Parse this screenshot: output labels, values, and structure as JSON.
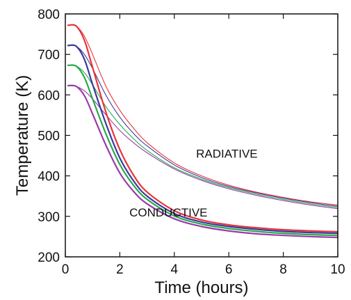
{
  "chart_data": {
    "type": "line",
    "title": "",
    "xlabel": "Time (hours)",
    "ylabel": "Temperature (K)",
    "xlim": [
      0,
      10
    ],
    "ylim": [
      200,
      800
    ],
    "xticks": [
      0,
      2,
      4,
      6,
      8,
      10
    ],
    "yticks": [
      200,
      300,
      400,
      500,
      600,
      700,
      800
    ],
    "xtick_labels": [
      "0",
      "2",
      "4",
      "6",
      "8",
      "10"
    ],
    "ytick_labels": [
      "200",
      "300",
      "400",
      "500",
      "600",
      "700",
      "800"
    ],
    "grid": false,
    "annotations": [
      {
        "text": "RADIATIVE",
        "x": 4.8,
        "y": 445
      },
      {
        "text": "CONDUCTIVE",
        "x": 2.35,
        "y": 300
      }
    ],
    "series": [
      {
        "group": "radiative",
        "color": "#e8333a",
        "x": [
          0.1,
          0.4,
          0.7,
          1.0,
          1.5,
          2.0,
          2.5,
          3.0,
          4.0,
          5.0,
          6.0,
          7.0,
          8.0,
          9.0,
          10.0
        ],
        "y": [
          772,
          770,
          745,
          700,
          620,
          562,
          518,
          482,
          432,
          400,
          377,
          360,
          347,
          336,
          328
        ]
      },
      {
        "group": "radiative",
        "color": "#3a3a9e",
        "x": [
          0.1,
          0.4,
          0.7,
          1.0,
          1.5,
          2.0,
          2.5,
          3.0,
          4.0,
          5.0,
          6.0,
          7.0,
          8.0,
          9.0,
          10.0
        ],
        "y": [
          722,
          720,
          700,
          665,
          598,
          545,
          505,
          474,
          427,
          396,
          374,
          358,
          345,
          334,
          325
        ]
      },
      {
        "group": "radiative",
        "color": "#2aa84a",
        "x": [
          0.1,
          0.4,
          0.7,
          1.0,
          1.5,
          2.0,
          2.5,
          3.0,
          4.0,
          5.0,
          6.0,
          7.0,
          8.0,
          9.0,
          10.0
        ],
        "y": [
          673,
          671,
          655,
          625,
          570,
          527,
          492,
          463,
          420,
          392,
          371,
          355,
          342,
          331,
          322
        ]
      },
      {
        "group": "radiative",
        "color": "#9a3aa8",
        "x": [
          0.1,
          0.4,
          0.7,
          1.0,
          1.5,
          2.0,
          2.5,
          3.0,
          4.0,
          5.0,
          6.0,
          7.0,
          8.0,
          9.0,
          10.0
        ],
        "y": [
          623,
          621,
          610,
          590,
          550,
          512,
          482,
          457,
          417,
          389,
          368,
          352,
          339,
          328,
          319
        ]
      },
      {
        "group": "conductive",
        "color": "#e8333a",
        "x": [
          0.1,
          0.4,
          0.7,
          1.0,
          1.5,
          2.0,
          2.5,
          3.0,
          4.0,
          5.0,
          6.0,
          7.0,
          8.0,
          9.0,
          10.0
        ],
        "y": [
          772,
          770,
          735,
          668,
          555,
          465,
          402,
          360,
          314,
          291,
          279,
          272,
          267,
          264,
          262
        ]
      },
      {
        "group": "conductive",
        "color": "#3a3a9e",
        "x": [
          0.1,
          0.4,
          0.7,
          1.0,
          1.5,
          2.0,
          2.5,
          3.0,
          4.0,
          5.0,
          6.0,
          7.0,
          8.0,
          9.0,
          10.0
        ],
        "y": [
          722,
          720,
          688,
          626,
          527,
          444,
          388,
          350,
          307,
          286,
          275,
          268,
          263,
          260,
          258
        ]
      },
      {
        "group": "conductive",
        "color": "#2aa84a",
        "x": [
          0.1,
          0.4,
          0.7,
          1.0,
          1.5,
          2.0,
          2.5,
          3.0,
          4.0,
          5.0,
          6.0,
          7.0,
          8.0,
          9.0,
          10.0
        ],
        "y": [
          673,
          671,
          643,
          590,
          502,
          428,
          377,
          342,
          301,
          281,
          270,
          263,
          258,
          255,
          253
        ]
      },
      {
        "group": "conductive",
        "color": "#9a3aa8",
        "x": [
          0.1,
          0.4,
          0.7,
          1.0,
          1.5,
          2.0,
          2.5,
          3.0,
          4.0,
          5.0,
          6.0,
          7.0,
          8.0,
          9.0,
          10.0
        ],
        "y": [
          623,
          621,
          598,
          553,
          474,
          407,
          362,
          331,
          294,
          275,
          264,
          257,
          253,
          250,
          248
        ]
      }
    ]
  }
}
